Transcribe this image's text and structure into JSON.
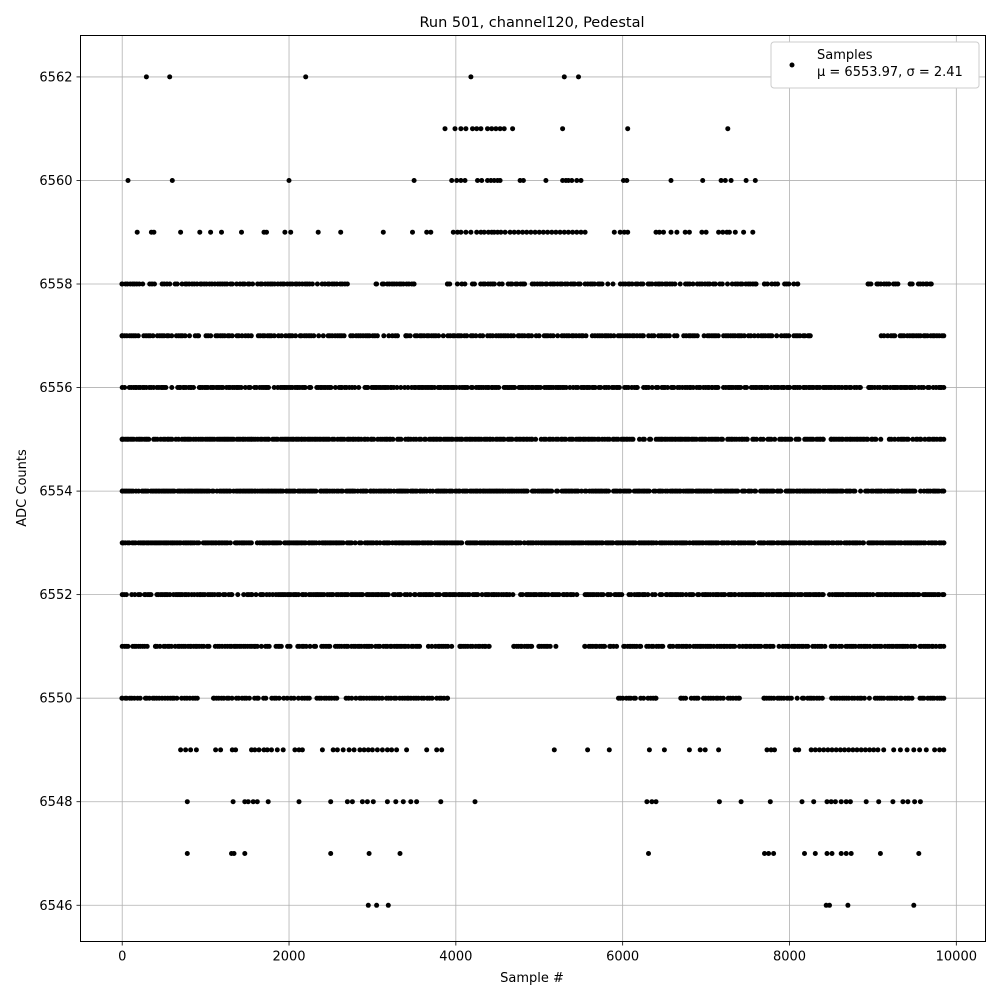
{
  "chart_data": {
    "type": "scatter",
    "title": "Run 501, channel120, Pedestal",
    "xlabel": "Sample #",
    "ylabel": "ADC Counts",
    "xlim": [
      -500,
      10350
    ],
    "ylim": [
      6545.3,
      6562.8
    ],
    "xticks": [
      0,
      2000,
      4000,
      6000,
      8000,
      10000
    ],
    "yticks": [
      6546,
      6548,
      6550,
      6552,
      6554,
      6556,
      6558,
      6560,
      6562
    ],
    "grid": true,
    "legend": {
      "location": "top-right",
      "entries": [
        "Samples",
        "μ = 6553.97, σ = 2.41"
      ]
    },
    "series": [
      {
        "name": "Samples",
        "color": "#000000",
        "marker": "circle",
        "x_range": [
          0,
          9850
        ],
        "levels": [
          {
            "y": 6562,
            "x": [
              290,
              570,
              2200,
              4180,
              5300,
              5470
            ]
          },
          {
            "y": 6561,
            "x": [
              3870,
              3990,
              4060,
              4120,
              4200,
              4250,
              4300,
              4380,
              4430,
              4480,
              4530,
              4580,
              4680,
              5280,
              6060,
              7260
            ]
          },
          {
            "y": 6560,
            "x": [
              70,
              600,
              2000,
              3500,
              3950,
              4010,
              4060,
              4110,
              4260,
              4310,
              4380,
              4420,
              4460,
              4500,
              4530,
              4770,
              4810,
              5080,
              5280,
              5320,
              5350,
              5390,
              5450,
              5500,
              6010,
              6050,
              6580,
              6960,
              7180,
              7230,
              7300,
              7480,
              7590
            ]
          },
          {
            "y": 6559,
            "x": [
              180,
              350,
              380,
              700,
              930,
              1060,
              1190,
              1430,
              1700,
              1730,
              1950,
              2020,
              2350,
              2620,
              3130,
              3480,
              3650,
              3700,
              3970,
              4020,
              4060,
              4120,
              4180,
              4250,
              4300,
              4340,
              4390,
              4430,
              4460,
              4500,
              4540,
              4590,
              4650,
              4700,
              4750,
              4800,
              4850,
              4900,
              4950,
              5000,
              5050,
              5100,
              5150,
              5200,
              5250,
              5300,
              5350,
              5400,
              5450,
              5500,
              5550,
              5900,
              5970,
              6020,
              6060,
              6400,
              6440,
              6490,
              6580,
              6650,
              6750,
              6800,
              6950,
              7000,
              7150,
              7200,
              7250,
              7280,
              7350,
              7450,
              7560
            ]
          },
          {
            "y": 6558,
            "x_dense": [
              [
                0,
                2700
              ],
              [
                3050,
                3500
              ],
              [
                3900,
                7600
              ],
              [
                7700,
                8100
              ],
              [
                8950,
                9300
              ],
              [
                9450,
                9700
              ]
            ],
            "density": 30
          },
          {
            "y": 6557,
            "x_dense": [
              [
                0,
                3300
              ],
              [
                3400,
                8250
              ],
              [
                9100,
                9850
              ]
            ],
            "density": 28
          },
          {
            "y": 6556,
            "x_dense": [
              [
                0,
                8850
              ],
              [
                8950,
                9850
              ]
            ],
            "density": 22
          },
          {
            "y": 6555,
            "x_dense": [
              [
                0,
                8400
              ],
              [
                8500,
                9850
              ]
            ],
            "density": 20
          },
          {
            "y": 6554,
            "x_dense": [
              [
                0,
                9850
              ]
            ],
            "density": 18
          },
          {
            "y": 6553,
            "x_dense": [
              [
                0,
                9850
              ]
            ],
            "density": 18
          },
          {
            "y": 6552,
            "x_dense": [
              [
                0,
                5450
              ],
              [
                5550,
                9850
              ]
            ],
            "density": 22
          },
          {
            "y": 6551,
            "x_dense": [
              [
                0,
                300
              ],
              [
                400,
                3950
              ],
              [
                4050,
                4400
              ],
              [
                4700,
                5200
              ],
              [
                5550,
                9850
              ]
            ],
            "density": 24
          },
          {
            "y": 6550,
            "x_dense": [
              [
                0,
                900
              ],
              [
                1100,
                3900
              ],
              [
                5950,
                6400
              ],
              [
                6700,
                7400
              ],
              [
                7700,
                9850
              ]
            ],
            "density": 30
          },
          {
            "y": 6549,
            "x": [
              700,
              760,
              820,
              890,
              1120,
              1180,
              1320,
              1360,
              1550,
              1590,
              1640,
              1700,
              1740,
              1790,
              1860,
              1930,
              2070,
              2120,
              2160,
              2400,
              2530,
              2580,
              2650,
              2720,
              2780,
              2850,
              2900,
              2950,
              3000,
              3060,
              3120,
              3180,
              3230,
              3290,
              3410,
              3650,
              3770,
              3830,
              5180,
              5580,
              5840,
              6320,
              6500,
              6800,
              6930,
              6990,
              7150,
              7730,
              7780,
              7820,
              8070,
              8110,
              8260,
              8310,
              8360,
              8410,
              8460,
              8510,
              8560,
              8610,
              8660,
              8710,
              8760,
              8810,
              8860,
              8910,
              8960,
              9010,
              9060,
              9130,
              9250,
              9330,
              9410,
              9490,
              9560,
              9640,
              9740,
              9800,
              9850
            ]
          },
          {
            "y": 6548,
            "x": [
              780,
              1330,
              1470,
              1510,
              1570,
              1620,
              1750,
              2120,
              2500,
              2700,
              2760,
              2880,
              2940,
              3010,
              3180,
              3280,
              3370,
              3460,
              3530,
              3820,
              4230,
              6290,
              6350,
              6400,
              7160,
              7420,
              7770,
              8150,
              8290,
              8450,
              8500,
              8550,
              8620,
              8680,
              8730,
              8920,
              9070,
              9240,
              9360,
              9420,
              9500,
              9570
            ]
          },
          {
            "y": 6547,
            "x": [
              780,
              1310,
              1340,
              1470,
              2500,
              2960,
              3330,
              6310,
              7700,
              7750,
              7810,
              8180,
              8310,
              8450,
              8510,
              8620,
              8680,
              8740,
              9090,
              9550
            ]
          },
          {
            "y": 6546,
            "x": [
              2950,
              3050,
              3190,
              8440,
              8480,
              8700,
              9490
            ]
          }
        ]
      }
    ]
  }
}
